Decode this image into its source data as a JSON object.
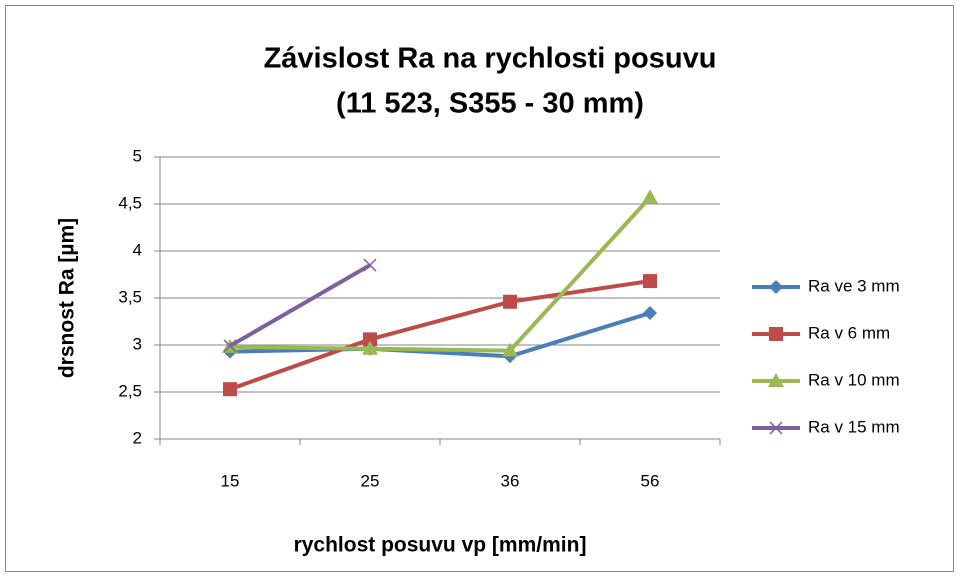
{
  "chart_data": {
    "type": "line",
    "title": [
      "Závislost Ra na rychlosti posuvu",
      "(11 523, S355 - 30 mm)"
    ],
    "x_label": "rychlost posuvu vp [mm/min]",
    "y_label": "drsnost Ra [µm]",
    "categories": [
      "15",
      "25",
      "36",
      "56"
    ],
    "series": [
      {
        "name": "Ra ve 3 mm",
        "color": "#4a7ebb",
        "marker": "diamond",
        "values": [
          2.93,
          2.96,
          2.88,
          3.34
        ]
      },
      {
        "name": "Ra v 6 mm",
        "color": "#be4b48",
        "marker": "square",
        "values": [
          2.53,
          3.06,
          3.46,
          3.68
        ]
      },
      {
        "name": "Ra v 10 mm",
        "color": "#98b954",
        "marker": "triangle",
        "values": [
          2.98,
          2.96,
          2.94,
          4.57
        ]
      },
      {
        "name": "Ra v 15 mm",
        "color": "#7d60a0",
        "marker": "x",
        "values": [
          2.99,
          3.85,
          null,
          null
        ]
      }
    ],
    "ylim": [
      2,
      5
    ],
    "yticks": [
      2,
      {
        "value": 2.5,
        "label": "2,5"
      },
      3,
      {
        "value": 3.5,
        "label": "3,5"
      },
      4,
      {
        "value": 4.5,
        "label": "4,5"
      },
      5
    ],
    "grid": true,
    "legend": "right"
  }
}
